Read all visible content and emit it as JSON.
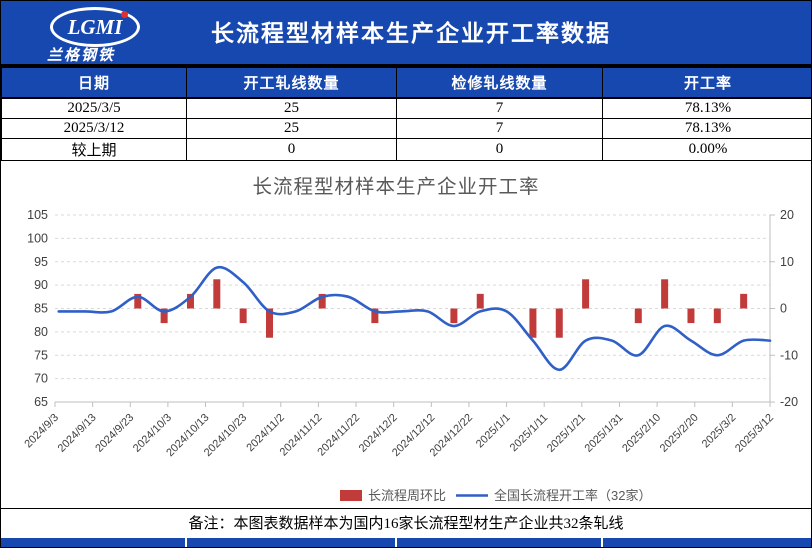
{
  "colors": {
    "band_blue": "#1648B0",
    "bar_red": "#C13B3B",
    "line_blue": "#2F5FC7",
    "grid_gray": "#D9D9D9",
    "axis_line_gray": "#BFBFBF",
    "axis_text": "#404040",
    "chart_text_gray": "#595959",
    "logo_dot_red": "#E03131"
  },
  "header": {
    "logo_text": "LGMI",
    "logo_subtext": "兰格钢铁",
    "title": "长流程型材样本生产企业开工率数据"
  },
  "table": {
    "columns": [
      "日期",
      "开工轧线数量",
      "检修轧线数量",
      "开工率"
    ],
    "rows": [
      [
        "2025/3/5",
        "25",
        "7",
        "78.13%"
      ],
      [
        "2025/3/12",
        "25",
        "7",
        "78.13%"
      ],
      [
        "较上期",
        "0",
        "0",
        "0.00%"
      ]
    ]
  },
  "chart_data": {
    "type": "combo",
    "title": "长流程型材样本生产企业开工率",
    "x": [
      "2024/9/4",
      "2024/9/11",
      "2024/9/18",
      "2024/9/25",
      "2024/10/2",
      "2024/10/9",
      "2024/10/16",
      "2024/10/23",
      "2024/10/30",
      "2024/11/6",
      "2024/11/13",
      "2024/11/20",
      "2024/11/27",
      "2024/12/4",
      "2024/12/11",
      "2024/12/18",
      "2024/12/25",
      "2025/1/1",
      "2025/1/8",
      "2025/1/15",
      "2025/1/22",
      "2025/1/29",
      "2025/2/5",
      "2025/2/12",
      "2025/2/19",
      "2025/2/26",
      "2025/3/5",
      "2025/3/12"
    ],
    "x_axis_tick_labels": [
      "2024/9/3",
      "2024/9/13",
      "2024/9/23",
      "2024/10/3",
      "2024/10/13",
      "2024/10/23",
      "2024/11/2",
      "2024/11/12",
      "2024/11/22",
      "2024/12/2",
      "2024/12/12",
      "2024/12/22",
      "2025/1/1",
      "2025/1/11",
      "2025/1/21",
      "2025/1/31",
      "2025/2/10",
      "2025/2/20",
      "2025/3/2",
      "2025/3/12"
    ],
    "series": [
      {
        "name": "长流程周环比",
        "type": "bar",
        "axis": "right",
        "values": [
          0,
          0,
          0,
          3.12,
          -3.12,
          3.12,
          6.25,
          -3.12,
          -6.25,
          0,
          3.12,
          0,
          -3.12,
          0,
          0,
          -3.13,
          3.13,
          0,
          -6.25,
          -6.25,
          6.25,
          0,
          -3.13,
          6.25,
          -3.12,
          -3.13,
          3.13,
          0
        ]
      },
      {
        "name": "全国长流程开工率（32家）",
        "type": "line",
        "axis": "left",
        "values": [
          84.38,
          84.38,
          84.38,
          87.5,
          84.38,
          87.5,
          93.75,
          90.63,
          84.38,
          84.38,
          87.5,
          87.5,
          84.38,
          84.38,
          84.38,
          81.25,
          84.38,
          84.38,
          78.13,
          71.88,
          78.13,
          78.13,
          75.0,
          81.25,
          78.13,
          75.0,
          78.13,
          78.13
        ]
      }
    ],
    "left_axis": {
      "min": 65,
      "max": 105,
      "step": 5,
      "ticks": [
        105,
        100,
        95,
        90,
        85,
        80,
        75,
        70,
        65
      ]
    },
    "right_axis": {
      "min": -20,
      "max": 20,
      "step": 10,
      "ticks": [
        20,
        10,
        0,
        -10,
        -20
      ]
    },
    "grid": "horizontal dashed",
    "legend_position": "bottom"
  },
  "note": {
    "text": "备注：本图表数据样本为国内16家长流程型材生产企业共32条轧线"
  }
}
